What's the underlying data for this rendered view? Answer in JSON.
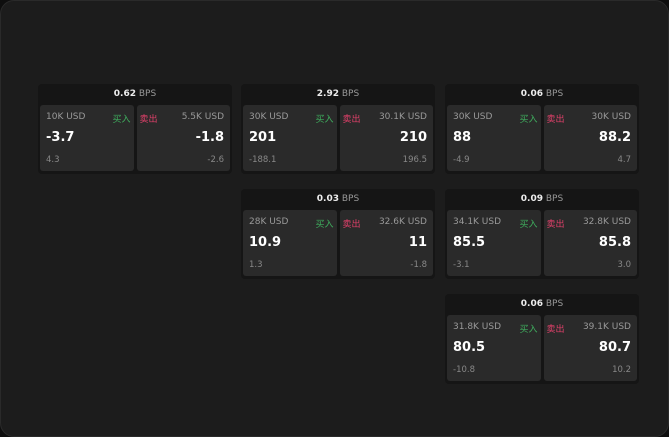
{
  "labels": {
    "unit": "BPS",
    "buy": "买入",
    "sell": "卖出"
  },
  "colors": {
    "buy": "#3fae5e",
    "sell": "#e0406a"
  },
  "cards": [
    {
      "bps": "0.62",
      "bid_size": "10K USD",
      "bid": "-3.7",
      "bid_chg": "4.3",
      "ask_size": "5.5K USD",
      "ask": "-1.8",
      "ask_chg": "-2.6"
    },
    {
      "bps": "2.92",
      "bid_size": "30K USD",
      "bid": "201",
      "bid_chg": "-188.1",
      "ask_size": "30.1K USD",
      "ask": "210",
      "ask_chg": "196.5"
    },
    {
      "bps": "0.06",
      "bid_size": "30K USD",
      "bid": "88",
      "bid_chg": "-4.9",
      "ask_size": "30K USD",
      "ask": "88.2",
      "ask_chg": "4.7"
    },
    {
      "bps": "0.03",
      "bid_size": "28K USD",
      "bid": "10.9",
      "bid_chg": "1.3",
      "ask_size": "32.6K USD",
      "ask": "11",
      "ask_chg": "-1.8"
    },
    {
      "bps": "0.09",
      "bid_size": "34.1K USD",
      "bid": "85.5",
      "bid_chg": "-3.1",
      "ask_size": "32.8K USD",
      "ask": "85.8",
      "ask_chg": "3.0"
    },
    {
      "bps": "0.06",
      "bid_size": "31.8K USD",
      "bid": "80.5",
      "bid_chg": "-10.8",
      "ask_size": "39.1K USD",
      "ask": "80.7",
      "ask_chg": "10.2"
    }
  ]
}
